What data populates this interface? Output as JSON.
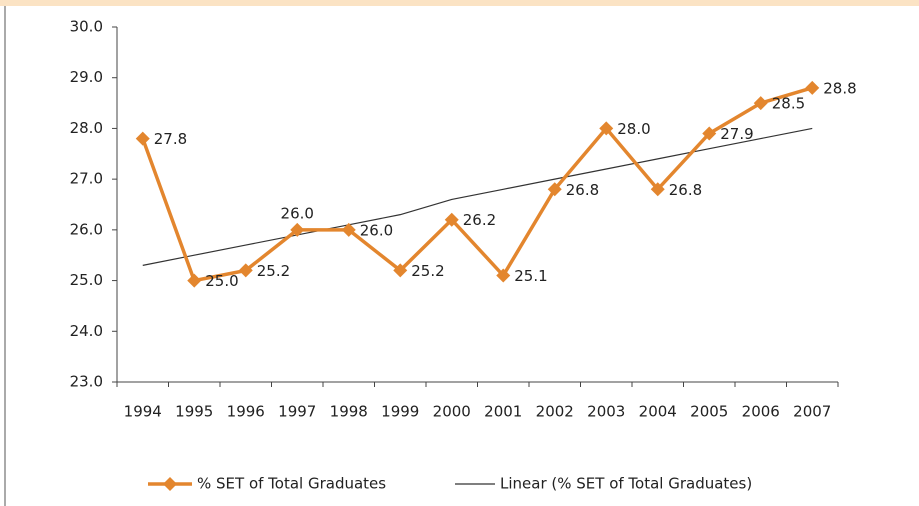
{
  "chart_data": {
    "type": "line",
    "categories": [
      "1994",
      "1995",
      "1996",
      "1997",
      "1998",
      "1999",
      "2000",
      "2001",
      "2002",
      "2003",
      "2004",
      "2005",
      "2006",
      "2007"
    ],
    "series": [
      {
        "name": "% SET of Total Graduates",
        "color": "#e3862e",
        "values": [
          27.8,
          25.0,
          25.2,
          26.0,
          26.0,
          25.2,
          26.2,
          25.1,
          26.8,
          28.0,
          26.8,
          27.9,
          28.5,
          28.8
        ],
        "value_labels": [
          "27.8",
          "25.0",
          "25.2",
          "26.0",
          "26.0",
          "25.2",
          "26.2",
          "25.1",
          "26.8",
          "28.0",
          "26.8",
          "27.9",
          "28.5",
          "28.8"
        ]
      },
      {
        "name": "Linear (% SET of Total Graduates)",
        "color": "#333333",
        "values": [
          25.3,
          25.5,
          25.7,
          25.9,
          26.1,
          26.3,
          26.6,
          26.8,
          27.0,
          27.2,
          27.4,
          27.6,
          27.8,
          28.0
        ]
      }
    ],
    "ylim": [
      23,
      30
    ],
    "yticks": [
      {
        "value": 23,
        "label": "23.0"
      },
      {
        "value": 24,
        "label": "24.0"
      },
      {
        "value": 25,
        "label": "25.0"
      },
      {
        "value": 26,
        "label": "26.0"
      },
      {
        "value": 27,
        "label": "27.0"
      },
      {
        "value": 28,
        "label": "28.0"
      },
      {
        "value": 29,
        "label": "29.0"
      },
      {
        "value": 30,
        "label": "30.0"
      }
    ],
    "legend": "bottom"
  }
}
